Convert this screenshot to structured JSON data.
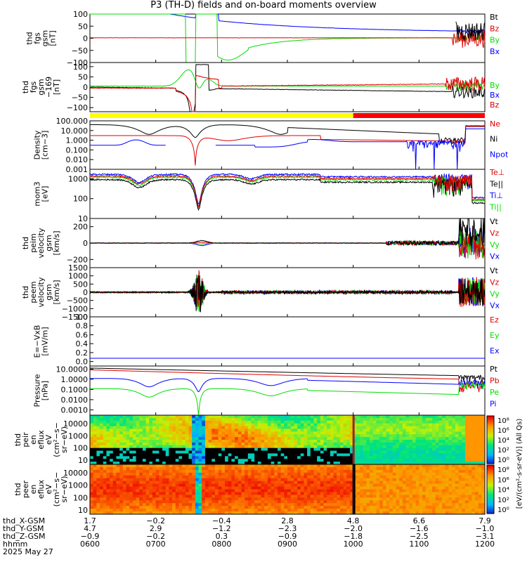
{
  "title": "P3 (TH-D) fields and on-board moments overview",
  "colors": {
    "black": "#000000",
    "red": "#e00000",
    "green": "#00dd00",
    "blue": "#0000ff"
  },
  "chart_data": {
    "type": "line",
    "panels": [
      {
        "id": "fgs",
        "ylabel": [
          "thd",
          "fgs",
          "gsm",
          "[nT]"
        ],
        "ylim": [
          -100,
          100
        ],
        "yticks": [
          100,
          50,
          0,
          -50,
          -100
        ],
        "yticklabels": [
          "100",
          "50",
          "0",
          "−50",
          "−100"
        ],
        "legend": [
          "Bt",
          "Bz",
          "By",
          "Bx"
        ]
      },
      {
        "id": "fgs_ed",
        "ylabel": [
          "thd",
          "fgs",
          "gsm",
          "−169",
          "[nT]"
        ],
        "ylim": [
          -120,
          120
        ],
        "yticks": [
          100,
          50,
          0,
          -50,
          -100
        ],
        "yticklabels": [
          "100",
          "50",
          "0",
          "−50",
          "−100"
        ],
        "legend": [
          "By",
          "Bx",
          "Bz"
        ]
      },
      {
        "id": "density",
        "ylabel": [
          "Density",
          "[cm−3]"
        ],
        "log": true,
        "ylim": [
          0.001,
          100
        ],
        "yticklabels": [
          "100.000",
          "10.000",
          "1.000",
          "0.100",
          "0.010",
          "0.001"
        ],
        "legend": [
          "Ne",
          "Ni",
          "Npot"
        ]
      },
      {
        "id": "temp",
        "ylabel": [
          "mom3",
          "[eV]"
        ],
        "log": true,
        "ylim": [
          10,
          3000
        ],
        "yticklabels": [
          "1000",
          "100",
          "10"
        ],
        "legend": [
          "Te⊥",
          "Te||",
          "Ti⊥",
          "Ti||"
        ]
      },
      {
        "id": "vi",
        "ylabel": [
          "thd",
          "peim",
          "velocity",
          "gsm",
          "[km/s]"
        ],
        "ylim": [
          -300,
          300
        ],
        "yticks": [
          200,
          0,
          -200
        ],
        "yticklabels": [
          "200",
          "0",
          "−200"
        ],
        "legend": [
          "Vt",
          "Vz",
          "Vy",
          "Vx"
        ]
      },
      {
        "id": "ve",
        "ylabel": [
          "thd",
          "peem",
          "velocity",
          "gsm",
          "[km/s]"
        ],
        "ylim": [
          -1500,
          1500
        ],
        "yticks": [
          1500,
          1000,
          500,
          0,
          -500,
          -1000,
          -1500
        ],
        "yticklabels": [
          "1500",
          "1000",
          "500",
          "0",
          "−500",
          "−1000",
          "−1500"
        ],
        "legend": [
          "Vt",
          "Vz",
          "Vy",
          "Vx"
        ]
      },
      {
        "id": "efield",
        "ylabel": [
          "E=−VxB",
          "[mV/m]"
        ],
        "ylim": [
          -0.1,
          1.0
        ],
        "yticks": [
          1.0,
          0.8,
          0.6,
          0.4,
          0.2,
          0.0
        ],
        "yticklabels": [
          "1.0",
          "0.8",
          "0.6",
          "0.4",
          "0.2",
          "0.0"
        ],
        "legend": [
          "Ez",
          "Ey",
          "Ex"
        ]
      },
      {
        "id": "pressure",
        "ylabel": [
          "Pressure",
          "[nPa]"
        ],
        "log": true,
        "ylim": [
          0.0003,
          20
        ],
        "yticklabels": [
          "10.0000",
          "1.0000",
          "0.1000",
          "0.0100",
          "0.0010"
        ],
        "legend": [
          "Pt",
          "Pb",
          "Pe",
          "Pi"
        ]
      },
      {
        "id": "ion_spec",
        "ylabel": [
          "thd",
          "peir",
          "en",
          "eflux",
          "eV",
          "(cm²−s−",
          "sr−eV)"
        ],
        "yticklabels": [
          "10000",
          "1000",
          "100",
          "10"
        ]
      },
      {
        "id": "elec_spec",
        "ylabel": [
          "thd",
          "peer",
          "en",
          "eflux",
          "eV",
          "(cm²−s−",
          "sr−eV)"
        ],
        "yticklabels": [
          "10000",
          "1000",
          "100",
          "10"
        ]
      }
    ],
    "colorbar": {
      "labels_top": [
        "10⁸",
        "10⁶",
        "10⁴",
        "10²",
        "10⁰"
      ],
      "labels_bottom": [
        "10⁸",
        "10⁶",
        "10⁴",
        "10²",
        "10⁰"
      ],
      "unit": "[eV/(cm²-s-sr-eV)] (All Qs)"
    },
    "xaxis": {
      "row_labels": [
        "thd_X-GSM",
        "thd_Y-GSM",
        "thd_Z-GSM",
        "hhmm",
        "2025 May 27"
      ],
      "X": [
        "1.7",
        "−0.2",
        "−0.4",
        "2.8",
        "4.8",
        "6.6",
        "7.9"
      ],
      "Y": [
        "4.7",
        "2.9",
        "−1.2",
        "−2.3",
        "−2.0",
        "−1.6",
        "−1.0"
      ],
      "Z": [
        "−0.9",
        "−0.2",
        "0.3",
        "−0.9",
        "−1.8",
        "−2.5",
        "−3.1"
      ],
      "hhmm": [
        "0600",
        "0700",
        "0800",
        "0900",
        "1000",
        "1100",
        "1200"
      ]
    },
    "mode_bar": {
      "yellow_until_hour": 10.0,
      "colors": [
        "#ffff00",
        "#ff0000"
      ]
    }
  }
}
